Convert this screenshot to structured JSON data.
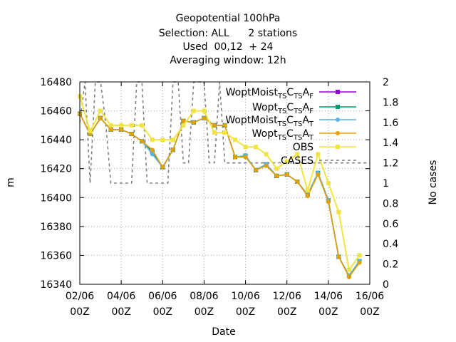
{
  "chart_data": {
    "type": "line",
    "title_lines": [
      "Geopotential 100hPa",
      "Selection: ALL      2 stations",
      "Used  00,12  + 24",
      "Averaging window: 12h"
    ],
    "xlabel": "Date",
    "ylabel": "m",
    "y2label": "No cases",
    "xlim": [
      0,
      28
    ],
    "ylim": [
      16340,
      16480
    ],
    "y2lim": [
      0,
      2
    ],
    "grid": true,
    "legend_position": "top-right",
    "x_ticks": [
      {
        "v": 0,
        "l1": "02/06",
        "l2": "00Z"
      },
      {
        "v": 4,
        "l1": "04/06",
        "l2": "00Z"
      },
      {
        "v": 8,
        "l1": "06/06",
        "l2": "00Z"
      },
      {
        "v": 12,
        "l1": "08/06",
        "l2": "00Z"
      },
      {
        "v": 16,
        "l1": "10/06",
        "l2": "00Z"
      },
      {
        "v": 20,
        "l1": "12/06",
        "l2": "00Z"
      },
      {
        "v": 24,
        "l1": "14/06",
        "l2": "00Z"
      },
      {
        "v": 28,
        "l1": "16/06",
        "l2": "00Z"
      }
    ],
    "y_ticks": [
      16340,
      16360,
      16380,
      16400,
      16420,
      16440,
      16460,
      16480
    ],
    "y2_ticks": [
      "0",
      "0.2",
      "0.4",
      "0.6",
      "0.8",
      "1",
      "1.2",
      "1.4",
      "1.6",
      "1.8",
      "2"
    ],
    "x": [
      0,
      1,
      2,
      3,
      4,
      5,
      6,
      7,
      8,
      9,
      10,
      11,
      12,
      13,
      14,
      15,
      16,
      17,
      18,
      19,
      20,
      21,
      22,
      23,
      24,
      25,
      26,
      27
    ],
    "series": [
      {
        "name": "Wopt Moist TS CTS AF",
        "label_html": "WoptMoist<tspan font-size='10' dy='4'>TS</tspan><tspan dy='-4'>C</tspan><tspan font-size='10' dy='4'>TS</tspan><tspan dy='-4'>A</tspan><tspan font-size='10' dy='4'>F</tspan>",
        "color": "#9400d3",
        "marker": "square",
        "values": [
          16458,
          16444,
          16455,
          16447,
          16447,
          16444,
          16439,
          16432,
          16421,
          16433,
          16453,
          16452,
          16455,
          16450,
          16450,
          16428,
          16429,
          16419,
          16423,
          16415,
          16416,
          16411,
          16402,
          16417,
          16398,
          16359,
          16346,
          16356
        ]
      },
      {
        "name": "Wopt TS CTS AF",
        "color": "#009e73",
        "marker": "square",
        "values": [
          16458,
          16444,
          16455,
          16447,
          16447,
          16444,
          16439,
          16432,
          16421,
          16433,
          16453,
          16452,
          16455,
          16450,
          16450,
          16428,
          16429,
          16419,
          16423,
          16415,
          16416,
          16411,
          16402,
          16417,
          16398,
          16359,
          16346,
          16356
        ]
      },
      {
        "name": "Wopt Moist TS CTS AT",
        "color": "#56b4e9",
        "marker": "circle",
        "values": [
          16458,
          16444,
          16455,
          16447,
          16447,
          16444,
          16439,
          16430,
          16421,
          16433,
          16453,
          16452,
          16455,
          16450,
          16450,
          16428,
          16429,
          16419,
          16423,
          16415,
          16416,
          16411,
          16402,
          16417,
          16398,
          16359,
          16346,
          16356
        ]
      },
      {
        "name": "Wopt TS CTS AT",
        "color": "#e69f00",
        "marker": "circle",
        "values": [
          16458,
          16444,
          16455,
          16447,
          16447,
          16444,
          16439,
          16433,
          16421,
          16433,
          16453,
          16452,
          16455,
          16450,
          16450,
          16428,
          16428,
          16419,
          16422,
          16415,
          16416,
          16411,
          16401,
          16416,
          16397,
          16359,
          16345,
          16355
        ]
      },
      {
        "name": "OBS",
        "color": "#f0e442",
        "marker": "square",
        "values": [
          16470,
          16446,
          16460,
          16450,
          16450,
          16450,
          16450,
          16440,
          16440,
          16440,
          16450,
          16460,
          16460,
          16445,
          16445,
          16440,
          16435,
          16435,
          16430,
          16420,
          16425,
          16430,
          16405,
          16430,
          16410,
          16390,
          16350,
          16360
        ]
      }
    ],
    "cases": {
      "name": "CASES",
      "color": "#808080",
      "axis": "y2",
      "x": [
        0,
        0.5,
        1,
        1.5,
        2,
        2.5,
        3,
        3.5,
        4,
        4.5,
        5,
        5.5,
        6,
        6.5,
        7,
        7.5,
        8,
        8.5,
        9,
        9.5,
        10,
        10.5,
        11,
        11.5,
        12,
        12.5,
        13,
        13.5,
        14,
        14.5,
        15,
        15.5,
        16,
        16.5,
        17,
        17.5,
        18,
        18.5,
        19,
        19.5,
        20,
        20.5,
        21,
        21.5,
        22,
        22.5,
        23,
        23.5,
        24,
        24.5,
        25,
        25.5,
        26,
        26.5,
        27,
        27.5,
        28
      ],
      "values": [
        1.6,
        2,
        1,
        2,
        2,
        1.6,
        1,
        1,
        1,
        1,
        1,
        2,
        2,
        1,
        1,
        1,
        1,
        1,
        2,
        2,
        1.2,
        1.2,
        2,
        2,
        2,
        1.2,
        1.2,
        2,
        1.2,
        1.2,
        1.2,
        1.2,
        1.2,
        1.2,
        1.2,
        1.2,
        1.2,
        1.2,
        1.2,
        1.2,
        1.2,
        1.2,
        1.2,
        1.2,
        1.2,
        1.2,
        1.2,
        1.2,
        1.2,
        1.2,
        1.2,
        1.2,
        1.2,
        1.2,
        1.2,
        1.2,
        1.2
      ]
    }
  }
}
